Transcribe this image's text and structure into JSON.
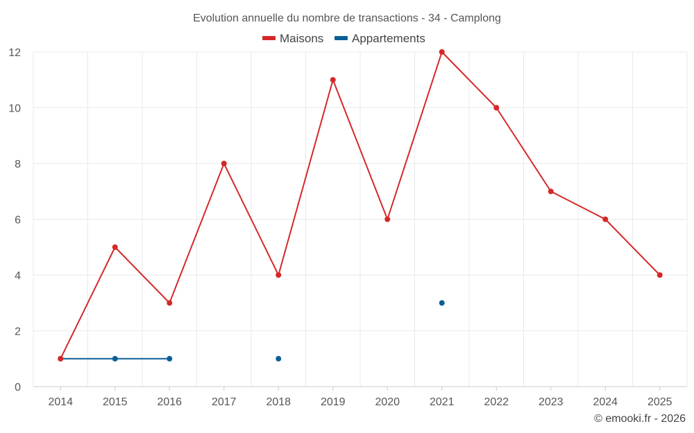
{
  "chart_data": {
    "type": "line",
    "title": "Evolution annuelle du nombre de transactions - 34 - Camplong",
    "categories": [
      "2014",
      "2015",
      "2016",
      "2017",
      "2018",
      "2019",
      "2020",
      "2021",
      "2022",
      "2023",
      "2024",
      "2025"
    ],
    "series": [
      {
        "name": "Maisons",
        "color": "#d62728",
        "values": [
          1,
          5,
          3,
          8,
          4,
          11,
          6,
          12,
          10,
          7,
          6,
          4
        ]
      },
      {
        "name": "Appartements",
        "color": "#0a5f96",
        "values": [
          1,
          1,
          1,
          null,
          1,
          null,
          null,
          3,
          null,
          null,
          null,
          null
        ]
      }
    ],
    "ylim": [
      0,
      12
    ],
    "yticks": [
      0,
      2,
      4,
      6,
      8,
      10,
      12
    ],
    "grid": true,
    "legend": "top-center",
    "xlabel": "",
    "ylabel": ""
  },
  "credit": "© emooki.fr - 2026"
}
